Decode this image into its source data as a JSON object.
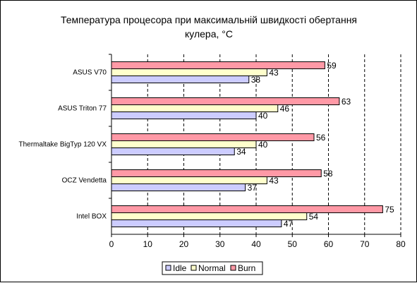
{
  "chart_data": {
    "type": "bar",
    "orientation": "horizontal",
    "title": "Температура процесора при максимальній швидкості обертання кулера, °C",
    "categories": [
      "ASUS V70",
      "ASUS Triton 77",
      "Thermaltake BigTyp 120 VX",
      "OCZ Vendetta",
      "Intel BOX"
    ],
    "series": [
      {
        "name": "Burn",
        "values": [
          59,
          63,
          56,
          58,
          75
        ],
        "color": "#ff99a6"
      },
      {
        "name": "Normal",
        "values": [
          43,
          46,
          40,
          43,
          54
        ],
        "color": "#ffffcc"
      },
      {
        "name": "Idle",
        "values": [
          38,
          40,
          34,
          37,
          47
        ],
        "color": "#ccccff"
      }
    ],
    "legend_order": [
      "Idle",
      "Normal",
      "Burn"
    ],
    "xlim": [
      0,
      80
    ],
    "xticks": [
      0,
      10,
      20,
      30,
      40,
      50,
      60,
      70,
      80
    ],
    "grid": "vertical dashed",
    "legend_position": "bottom",
    "data_labels": true,
    "bar_edge_color": "#000000"
  }
}
